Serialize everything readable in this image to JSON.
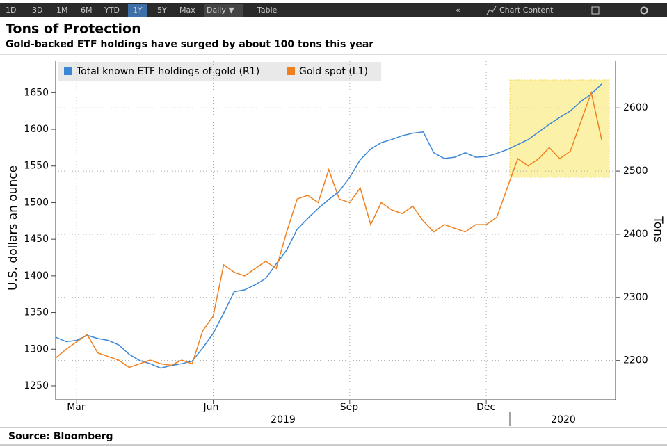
{
  "toolbar": {
    "ranges": [
      "1D",
      "3D",
      "1M",
      "6M",
      "YTD",
      "1Y",
      "5Y",
      "Max"
    ],
    "frequency": "Daily ▼",
    "table": "Table",
    "content": "Chart Content"
  },
  "chart_data": {
    "type": "line",
    "title": "Tons of Protection",
    "subtitle": "Gold-backed ETF holdings have surged by about 100 tons this year",
    "ylabel": "U.S. dollars an ounce",
    "y2label": "Tons",
    "source": "Source: Bloomberg",
    "categories": [
      null,
      null,
      "Mar",
      null,
      null,
      null,
      null,
      null,
      null,
      null,
      null,
      null,
      null,
      null,
      null,
      "Jun",
      null,
      null,
      null,
      null,
      null,
      null,
      null,
      null,
      null,
      null,
      null,
      null,
      "Sep",
      null,
      null,
      null,
      null,
      null,
      null,
      null,
      null,
      null,
      null,
      null,
      null,
      "Dec",
      null,
      null,
      null,
      null,
      null,
      null,
      null,
      null,
      null,
      null,
      null
    ],
    "year_labels": [
      "2019",
      "2020"
    ],
    "series": [
      {
        "name": "Total known ETF holdings of gold (R1)",
        "color": "#3a87d6",
        "axis": "y2",
        "values": [
          2237,
          2230,
          2232,
          2240,
          2235,
          2232,
          2225,
          2210,
          2200,
          2195,
          2188,
          2192,
          2195,
          2199,
          2220,
          2243,
          2275,
          2309,
          2312,
          2320,
          2330,
          2353,
          2375,
          2408,
          2425,
          2441,
          2455,
          2468,
          2490,
          2518,
          2535,
          2545,
          2550,
          2556,
          2560,
          2562,
          2529,
          2520,
          2522,
          2529,
          2522,
          2523,
          2528,
          2534,
          2542,
          2550,
          2562,
          2574,
          2585,
          2595,
          2610,
          2622,
          2638
        ]
      },
      {
        "name": "Gold spot (L1)",
        "color": "#f07f1e",
        "values": [
          1288,
          1300,
          1310,
          1320,
          1295,
          1290,
          1285,
          1275,
          1280,
          1285,
          1280,
          1278,
          1285,
          1280,
          1325,
          1345,
          1415,
          1405,
          1400,
          1410,
          1420,
          1410,
          1460,
          1505,
          1510,
          1500,
          1545,
          1505,
          1500,
          1520,
          1470,
          1500,
          1490,
          1485,
          1495,
          1475,
          1460,
          1470,
          1465,
          1460,
          1470,
          1470,
          1480,
          1520,
          1560,
          1550,
          1560,
          1575,
          1560,
          1570,
          1610,
          1650,
          1585
        ]
      }
    ],
    "ylim": [
      1231,
      1693
    ],
    "yticks": [
      1250,
      1300,
      1350,
      1400,
      1450,
      1500,
      1550,
      1600,
      1650
    ],
    "y2lim": [
      2138,
      2674
    ],
    "y2ticks": [
      2200,
      2300,
      2400,
      2500,
      2600
    ],
    "grid": true
  }
}
